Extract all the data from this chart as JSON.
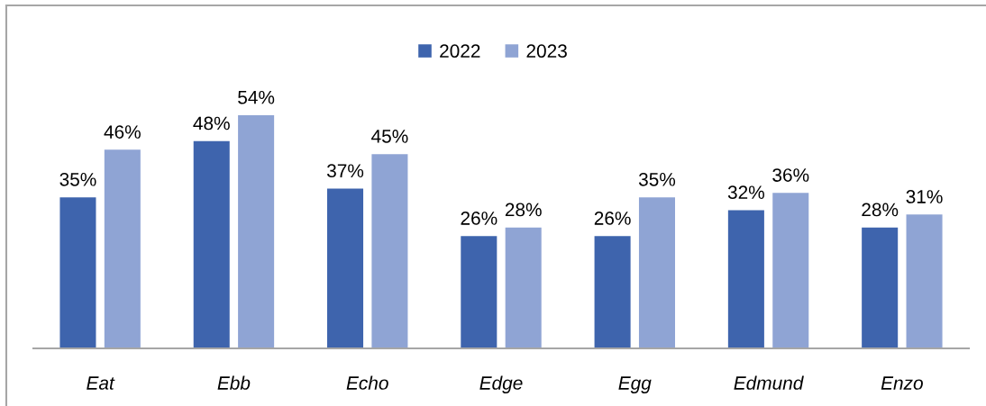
{
  "chart_data": {
    "type": "bar",
    "categories": [
      "Eat",
      "Ebb",
      "Echo",
      "Edge",
      "Egg",
      "Edmund",
      "Enzo"
    ],
    "series": [
      {
        "name": "2022",
        "color": "#3e64ad",
        "values": [
          35,
          48,
          37,
          26,
          26,
          32,
          28
        ],
        "value_labels": [
          "35%",
          "48%",
          "37%",
          "26%",
          "26%",
          "32%",
          "28%"
        ]
      },
      {
        "name": "2023",
        "color": "#8fa4d4",
        "values": [
          46,
          54,
          45,
          28,
          35,
          36,
          31
        ],
        "value_labels": [
          "46%",
          "54%",
          "45%",
          "28%",
          "35%",
          "36%",
          "31%"
        ]
      }
    ],
    "legend": "top",
    "grid": false
  }
}
